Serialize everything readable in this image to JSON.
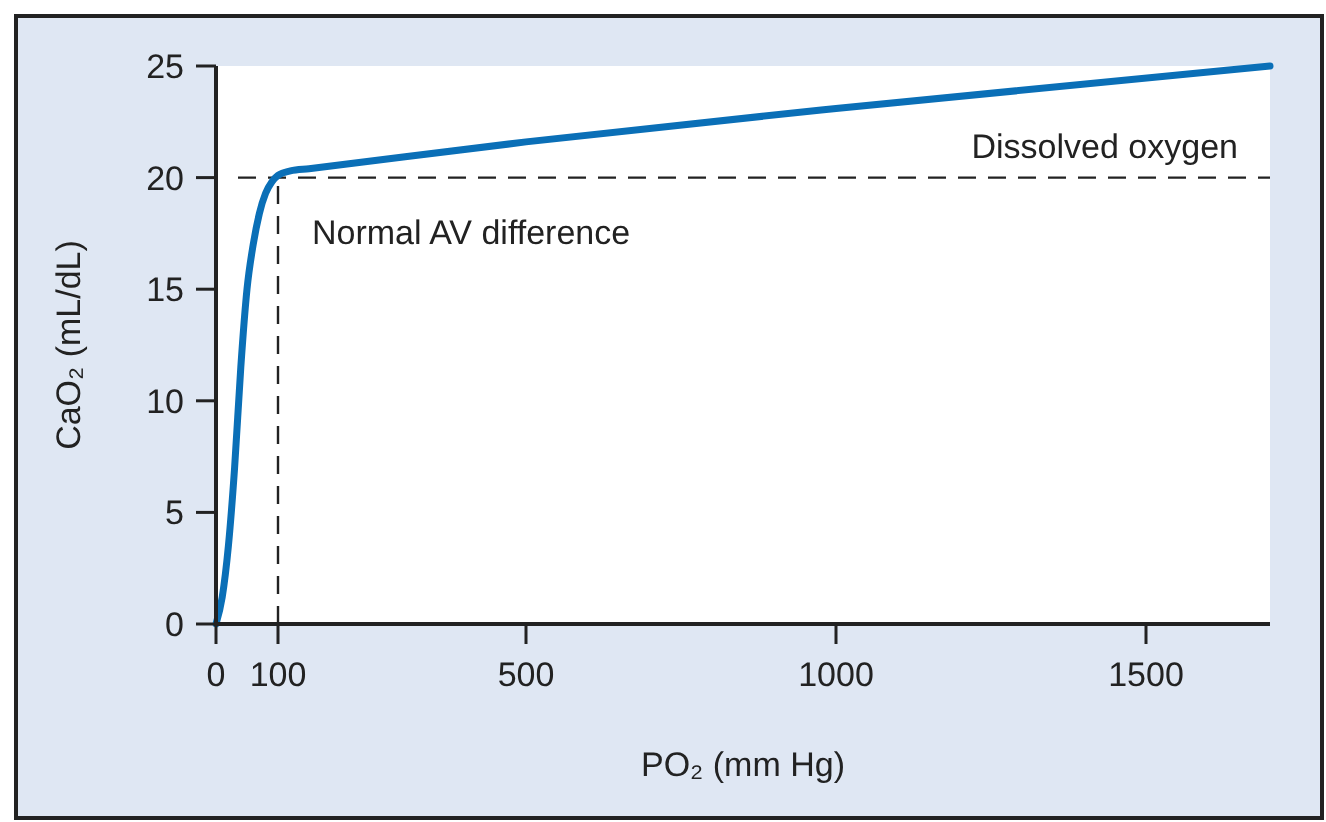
{
  "chart_data": {
    "type": "line",
    "xlabel": "PO₂ (mm Hg)",
    "ylabel": "CaO₂ (mL/dL)",
    "x": [
      0,
      10,
      20,
      30,
      40,
      50,
      60,
      70,
      80,
      90,
      100,
      120,
      150,
      500,
      1000,
      1700
    ],
    "series": [
      {
        "color": "#0a6fb7",
        "values": [
          0,
          1.2,
          3.5,
          7,
          11.5,
          15,
          17,
          18.4,
          19.3,
          19.8,
          20.1,
          20.3,
          20.4,
          21.6,
          23.1,
          25
        ]
      }
    ],
    "xlim": [
      0,
      1700
    ],
    "xticks": [
      0,
      100,
      500,
      1000,
      1500
    ],
    "ylim": [
      0,
      25
    ],
    "yticks": [
      0,
      5,
      10,
      15,
      20,
      25
    ],
    "ref_lines": [
      {
        "axis": "y",
        "value": 20,
        "color": "#222222",
        "line_style": "dashed"
      },
      {
        "axis": "x",
        "value": 100,
        "color": "#222222",
        "line_style": "dashed"
      }
    ],
    "annotations": [
      "Dissolved oxygen",
      "Normal AV difference"
    ],
    "grid": false,
    "marker": "none",
    "line_style": "solid"
  }
}
